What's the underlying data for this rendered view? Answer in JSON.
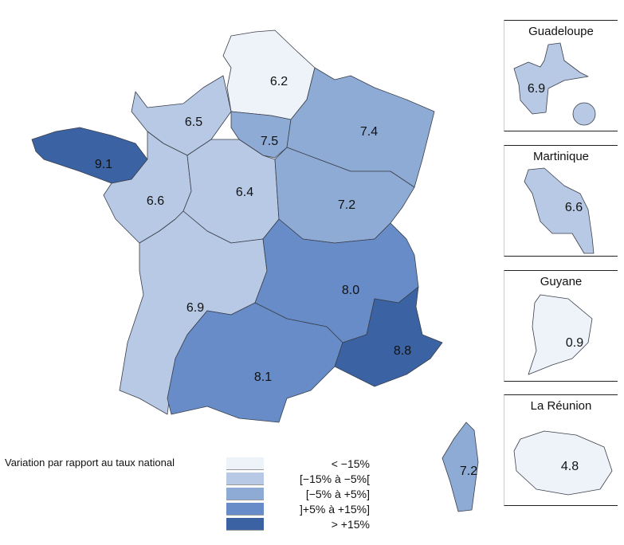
{
  "colors": {
    "c0": "#eef2f9",
    "c1": "#b7c9e4",
    "c2": "#8eabd6",
    "c3": "#678cc8",
    "c4": "#3b63a3"
  },
  "regions": [
    {
      "id": "hauts-de-france",
      "value": "6.2",
      "cls": "c0"
    },
    {
      "id": "normandie",
      "value": "6.5",
      "cls": "c1"
    },
    {
      "id": "ile-de-france",
      "value": "7.5",
      "cls": "c2"
    },
    {
      "id": "grand-est",
      "value": "7.4",
      "cls": "c2"
    },
    {
      "id": "bretagne",
      "value": "9.1",
      "cls": "c4"
    },
    {
      "id": "pays-de-la-loire",
      "value": "6.6",
      "cls": "c1"
    },
    {
      "id": "centre",
      "value": "6.4",
      "cls": "c1"
    },
    {
      "id": "bourgogne-franche-comte",
      "value": "7.2",
      "cls": "c2"
    },
    {
      "id": "nouvelle-aquitaine",
      "value": "6.9",
      "cls": "c1"
    },
    {
      "id": "auvergne-rhone-alpes",
      "value": "8.0",
      "cls": "c3"
    },
    {
      "id": "occitanie",
      "value": "8.1",
      "cls": "c3"
    },
    {
      "id": "paca",
      "value": "8.8",
      "cls": "c4"
    },
    {
      "id": "corse",
      "value": "7.2",
      "cls": "c2"
    }
  ],
  "insets": [
    {
      "name": "Guadeloupe",
      "value": "6.9",
      "cls": "c1"
    },
    {
      "name": "Martinique",
      "value": "6.6",
      "cls": "c1"
    },
    {
      "name": "Guyane",
      "value": "0.9",
      "cls": "c0"
    },
    {
      "name": "La Réunion",
      "value": "4.8",
      "cls": "c0"
    }
  ],
  "legend": {
    "title": "Variation par rapport au taux national",
    "items": [
      {
        "label": "< −15%",
        "cls": "c0"
      },
      {
        "label": "[−15% à −5%[",
        "cls": "c1"
      },
      {
        "label": "[−5% à +5%]",
        "cls": "c2"
      },
      {
        "label": "]+5% à +15%]",
        "cls": "c3"
      },
      {
        "label": "> +15%",
        "cls": "c4"
      }
    ]
  }
}
